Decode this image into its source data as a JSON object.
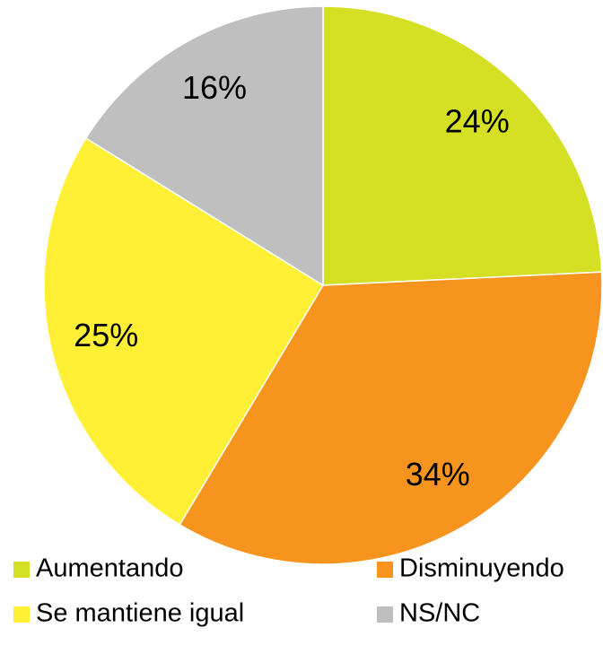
{
  "chart_data": {
    "type": "pie",
    "categories": [
      "Aumentando",
      "Disminuyendo",
      "Se mantiene igual",
      "NS/NC"
    ],
    "values": [
      24,
      34,
      25,
      16
    ],
    "value_labels": [
      "24%",
      "34%",
      "25%",
      "16%"
    ],
    "colors": [
      "#d5df24",
      "#f7941d",
      "#fff035",
      "#bfbfbf"
    ]
  }
}
